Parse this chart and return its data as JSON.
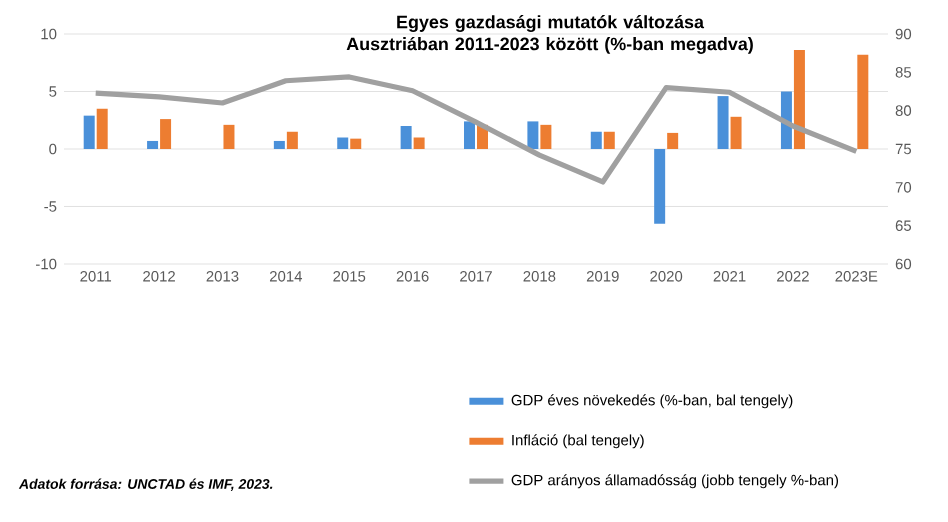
{
  "chart_data": {
    "type": "bar",
    "title": "Egyes gazdasági mutatók változása Ausztriában 2011-2023 között (%-ban megadva)",
    "categories": [
      "2011",
      "2012",
      "2013",
      "2014",
      "2015",
      "2016",
      "2017",
      "2018",
      "2019",
      "2020",
      "2021",
      "2022",
      "2023E"
    ],
    "series": [
      {
        "name": "GDP éves növekedés (%-ban, bal tengely)",
        "color": "#4a90d9",
        "values": [
          2.9,
          0.7,
          0.0,
          0.7,
          1.0,
          2.0,
          2.4,
          2.4,
          1.5,
          -6.5,
          4.6,
          5.0,
          null
        ]
      },
      {
        "name": "Infláció (bal tengely)",
        "color": "#ed7d31",
        "values": [
          3.5,
          2.6,
          2.1,
          1.5,
          0.9,
          1.0,
          2.1,
          2.1,
          1.5,
          1.4,
          2.8,
          8.6,
          8.2
        ]
      },
      {
        "name": "GDP arányos államadósság (jobb tengely %-ban)",
        "type": "line",
        "axis": "y2",
        "color": "#a0a0a0",
        "values": [
          82.3,
          81.8,
          81.0,
          83.9,
          84.4,
          82.6,
          78.5,
          74.2,
          70.7,
          83.0,
          82.4,
          78.0,
          74.7
        ]
      }
    ],
    "ylim": [
      -10,
      10
    ],
    "yticks": [
      -10,
      -5,
      0,
      5,
      10
    ],
    "y2lim": [
      60,
      90
    ],
    "y2ticks": [
      60,
      65,
      70,
      75,
      80,
      85,
      90
    ],
    "grid": "y",
    "legend": "bottom",
    "marker": "none",
    "line_style": "solid",
    "annotations": [
      "Adatok forrása: UNCTAD és IMF, 2023."
    ]
  }
}
